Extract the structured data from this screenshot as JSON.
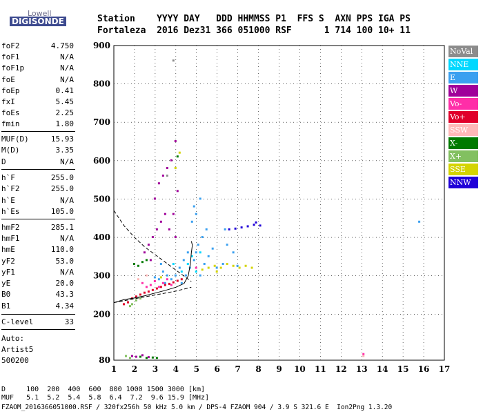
{
  "logo": {
    "line1": "Lowell",
    "line2": "DIGISONDE"
  },
  "header": {
    "labels": "Station    YYYY DAY   DDD HHMMSS P1  FFS S  AXN PPS IGA PS",
    "values": "Fortaleza  2016 Dez31 366 051000 RSF      1 714 100 10+ 11"
  },
  "params": [
    {
      "name": "foF2",
      "value": "4.750"
    },
    {
      "name": "foF1",
      "value": "N/A"
    },
    {
      "name": "foF1p",
      "value": "N/A"
    },
    {
      "name": "foE",
      "value": "N/A"
    },
    {
      "name": "foEp",
      "value": "0.41"
    },
    {
      "name": "fxI",
      "value": "5.45"
    },
    {
      "name": "foEs",
      "value": "2.25"
    },
    {
      "name": "fmin",
      "value": "1.80"
    },
    {
      "name": "MUF(D)",
      "value": "15.93"
    },
    {
      "name": "M(D)",
      "value": "3.35"
    },
    {
      "name": "D",
      "value": "N/A"
    },
    {
      "name": "h`F",
      "value": "255.0"
    },
    {
      "name": "h`F2",
      "value": "255.0"
    },
    {
      "name": "h`E",
      "value": "N/A"
    },
    {
      "name": "h`Es",
      "value": "105.0"
    },
    {
      "name": "hmF2",
      "value": "285.1"
    },
    {
      "name": "hmF1",
      "value": "N/A"
    },
    {
      "name": "hmE",
      "value": "110.0"
    },
    {
      "name": "yF2",
      "value": "53.0"
    },
    {
      "name": "yF1",
      "value": "N/A"
    },
    {
      "name": "yE",
      "value": "20.0"
    },
    {
      "name": "B0",
      "value": "43.3"
    },
    {
      "name": "B1",
      "value": "4.34"
    },
    {
      "name": "C-level",
      "value": "33"
    }
  ],
  "auto": {
    "line1": "Auto:",
    "line2": "Artist5",
    "line3": "500200"
  },
  "legend": [
    {
      "label": "NoVal",
      "color": "#8c8c8c"
    },
    {
      "label": "NNE",
      "color": "#00d8ff"
    },
    {
      "label": "E",
      "color": "#3aa0f0"
    },
    {
      "label": "W",
      "color": "#a0009a"
    },
    {
      "label": "Vo-",
      "color": "#ff2ea8"
    },
    {
      "label": "Vo+",
      "color": "#e0002a"
    },
    {
      "label": "SSW",
      "color": "#ffb8b8"
    },
    {
      "label": "X-",
      "color": "#007a00"
    },
    {
      "label": "X+",
      "color": "#82c060"
    },
    {
      "label": "SSE",
      "color": "#d4d400"
    },
    {
      "label": "NNW",
      "color": "#2000d8"
    }
  ],
  "footer": {
    "row1": "D     100  200  400  600  800 1000 1500 3000 [km]",
    "row2": "MUF   5.1  5.2  5.4  5.8  6.4  7.2  9.6 15.9 [MHz]",
    "row3": "FZAOM_2016366051000.RSF / 320fx256h 50 kHz 5.0 km / DPS-4 FZAOM 904 / 3.9 S 321.6 E  Ion2Png 1.3.20"
  },
  "chart_data": {
    "type": "scatter",
    "xlim": [
      1,
      17
    ],
    "ylim": [
      80,
      900
    ],
    "xticks": [
      1,
      2,
      3,
      4,
      5,
      6,
      7,
      8,
      9,
      10,
      11,
      12,
      13,
      14,
      15,
      16,
      17
    ],
    "yticks": [
      80,
      200,
      300,
      400,
      500,
      600,
      700,
      800,
      900
    ],
    "grid": true,
    "legend_placement": "right",
    "series": [
      {
        "name": "E",
        "color": "#3aa0f0",
        "points": [
          [
            4.3,
            280
          ],
          [
            4.5,
            300
          ],
          [
            4.7,
            320
          ],
          [
            4.9,
            340
          ],
          [
            5.0,
            360
          ],
          [
            5.1,
            380
          ],
          [
            5.3,
            400
          ],
          [
            5.5,
            420
          ],
          [
            4.8,
            440
          ],
          [
            5.0,
            460
          ],
          [
            5.2,
            300
          ],
          [
            5.4,
            330
          ],
          [
            5.6,
            350
          ],
          [
            5.8,
            370
          ],
          [
            6.0,
            320
          ],
          [
            6.3,
            330
          ],
          [
            6.5,
            380
          ],
          [
            6.4,
            420
          ],
          [
            4.6,
            360
          ],
          [
            4.4,
            340
          ],
          [
            4.2,
            320
          ],
          [
            4.0,
            300
          ],
          [
            3.8,
            290
          ],
          [
            3.6,
            300
          ],
          [
            3.4,
            310
          ],
          [
            3.2,
            290
          ],
          [
            3.0,
            295
          ],
          [
            5.2,
            500
          ],
          [
            4.9,
            480
          ],
          [
            3.3,
            330
          ],
          [
            3.5,
            280
          ],
          [
            6.8,
            360
          ],
          [
            7.0,
            325
          ],
          [
            15.8,
            440
          ]
        ]
      },
      {
        "name": "W",
        "color": "#a0009a",
        "points": [
          [
            2.5,
            360
          ],
          [
            2.7,
            380
          ],
          [
            2.9,
            400
          ],
          [
            3.1,
            420
          ],
          [
            3.3,
            440
          ],
          [
            3.5,
            460
          ],
          [
            3.0,
            500
          ],
          [
            3.2,
            540
          ],
          [
            3.4,
            560
          ],
          [
            3.6,
            580
          ],
          [
            2.8,
            340
          ],
          [
            3.7,
            420
          ],
          [
            3.9,
            460
          ],
          [
            4.0,
            400
          ],
          [
            4.1,
            520
          ],
          [
            3.8,
            600
          ],
          [
            4.0,
            650
          ],
          [
            1.9,
            90
          ],
          [
            2.1,
            88
          ],
          [
            2.4,
            92
          ],
          [
            2.7,
            87
          ]
        ]
      },
      {
        "name": "NNE",
        "color": "#00d8ff",
        "points": [
          [
            4.6,
            330
          ],
          [
            4.8,
            350
          ],
          [
            5.0,
            310
          ],
          [
            5.2,
            360
          ],
          [
            4.3,
            310
          ],
          [
            3.9,
            330
          ]
        ]
      },
      {
        "name": "X-",
        "color": "#007a00",
        "points": [
          [
            2.0,
            330
          ],
          [
            2.2,
            325
          ],
          [
            2.4,
            335
          ],
          [
            2.6,
            340
          ],
          [
            2.3,
            88
          ],
          [
            2.6,
            85
          ],
          [
            2.9,
            86
          ],
          [
            3.1,
            85
          ],
          [
            4.1,
            610
          ]
        ]
      },
      {
        "name": "X+",
        "color": "#82c060",
        "points": [
          [
            1.7,
            230
          ],
          [
            1.9,
            225
          ],
          [
            2.1,
            235
          ],
          [
            2.3,
            240
          ],
          [
            1.8,
            220
          ],
          [
            1.6,
            90
          ],
          [
            1.8,
            85
          ]
        ]
      },
      {
        "name": "SSE",
        "color": "#d4d400",
        "points": [
          [
            5.3,
            315
          ],
          [
            5.6,
            320
          ],
          [
            5.9,
            325
          ],
          [
            6.2,
            320
          ],
          [
            6.5,
            330
          ],
          [
            6.8,
            325
          ],
          [
            7.1,
            320
          ],
          [
            7.4,
            325
          ],
          [
            7.7,
            320
          ],
          [
            6.0,
            310
          ],
          [
            4.0,
            580
          ],
          [
            4.2,
            620
          ],
          [
            3.3,
            295
          ]
        ]
      },
      {
        "name": "Vo-",
        "color": "#ff2ea8",
        "points": [
          [
            2.4,
            280
          ],
          [
            2.6,
            270
          ],
          [
            2.8,
            275
          ],
          [
            3.0,
            285
          ],
          [
            3.2,
            270
          ],
          [
            3.4,
            280
          ],
          [
            3.6,
            290
          ],
          [
            3.8,
            275
          ],
          [
            5.0,
            320
          ],
          [
            13.1,
            95
          ]
        ]
      },
      {
        "name": "Vo+",
        "color": "#e0002a",
        "points": [
          [
            1.5,
            225
          ],
          [
            1.7,
            230
          ],
          [
            1.9,
            240
          ],
          [
            2.1,
            245
          ],
          [
            2.3,
            250
          ],
          [
            2.5,
            255
          ],
          [
            2.7,
            258
          ],
          [
            2.9,
            262
          ],
          [
            3.1,
            266
          ],
          [
            3.3,
            270
          ],
          [
            3.5,
            275
          ],
          [
            3.7,
            278
          ],
          [
            3.9,
            282
          ],
          [
            4.1,
            286
          ],
          [
            4.3,
            290
          ]
        ]
      },
      {
        "name": "SSW",
        "color": "#ffb8b8",
        "points": [
          [
            2.2,
            290
          ],
          [
            2.6,
            300
          ],
          [
            13.1,
            90
          ]
        ]
      },
      {
        "name": "NNW",
        "color": "#2000d8",
        "points": [
          [
            6.6,
            420
          ],
          [
            6.9,
            422
          ],
          [
            7.2,
            425
          ],
          [
            7.5,
            428
          ],
          [
            7.8,
            432
          ],
          [
            8.1,
            430
          ],
          [
            7.9,
            438
          ]
        ]
      },
      {
        "name": "NoVal",
        "color": "#8c8c8c",
        "points": [
          [
            3.9,
            860
          ],
          [
            3.6,
            560
          ]
        ]
      }
    ],
    "curves": [
      {
        "name": "trace-dashed",
        "style": "dashed",
        "points": [
          [
            1.0,
            470
          ],
          [
            1.5,
            430
          ],
          [
            2.0,
            400
          ],
          [
            2.5,
            375
          ],
          [
            3.0,
            355
          ],
          [
            3.5,
            335
          ],
          [
            4.0,
            315
          ],
          [
            4.5,
            295
          ],
          [
            4.75,
            285
          ]
        ]
      },
      {
        "name": "profile-solid",
        "style": "solid",
        "points": [
          [
            1.0,
            230
          ],
          [
            1.5,
            238
          ],
          [
            2.0,
            242
          ],
          [
            2.5,
            248
          ],
          [
            3.0,
            255
          ],
          [
            3.5,
            262
          ],
          [
            4.0,
            270
          ],
          [
            4.4,
            280
          ],
          [
            4.6,
            300
          ],
          [
            4.7,
            330
          ],
          [
            4.75,
            360
          ],
          [
            4.8,
            380
          ],
          [
            4.75,
            390
          ]
        ]
      },
      {
        "name": "lower-dashed",
        "style": "dashed",
        "points": [
          [
            1.0,
            230
          ],
          [
            2.0,
            240
          ],
          [
            3.0,
            250
          ],
          [
            4.0,
            260
          ],
          [
            4.75,
            270
          ]
        ]
      }
    ]
  }
}
